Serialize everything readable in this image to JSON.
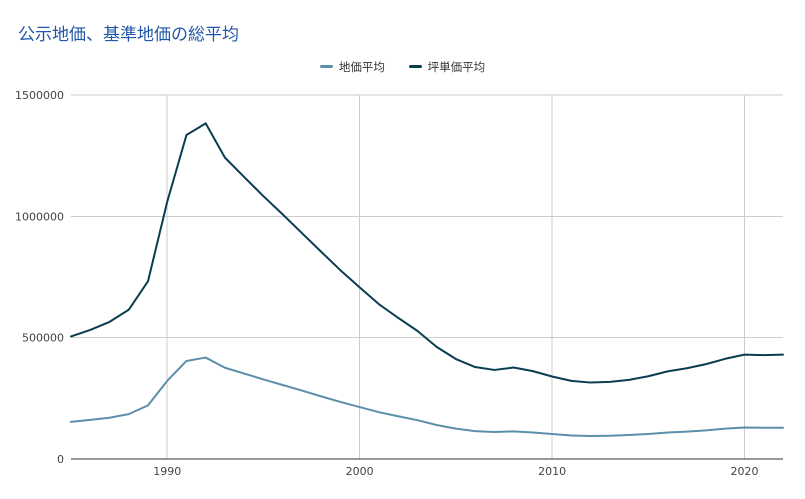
{
  "chart_data": {
    "type": "line",
    "title": "公示地価、基準地価の総平均",
    "xlabel": "",
    "ylabel": "",
    "xlim": [
      1985,
      2022
    ],
    "ylim": [
      0,
      1500000
    ],
    "x_ticks": [
      1990,
      2000,
      2010,
      2020
    ],
    "y_ticks": [
      0,
      500000,
      1000000,
      1500000
    ],
    "grid": true,
    "legend_position": "top",
    "x": [
      1985,
      1986,
      1987,
      1988,
      1989,
      1990,
      1991,
      1992,
      1993,
      1994,
      1995,
      1996,
      1997,
      1998,
      1999,
      2000,
      2001,
      2002,
      2003,
      2004,
      2005,
      2006,
      2007,
      2008,
      2009,
      2010,
      2011,
      2012,
      2013,
      2014,
      2015,
      2016,
      2017,
      2018,
      2019,
      2020,
      2021,
      2022
    ],
    "series": [
      {
        "name": "地価平均",
        "color": "#5b8fab",
        "values": [
          153000,
          161000,
          170000,
          185000,
          221000,
          322000,
          404000,
          418000,
          376000,
          352000,
          328000,
          305000,
          282000,
          258000,
          235000,
          214000,
          193000,
          176000,
          160000,
          140000,
          125000,
          115000,
          111000,
          114000,
          109000,
          103000,
          97000,
          95000,
          96000,
          99000,
          103000,
          109000,
          113000,
          118000,
          125000,
          130000,
          129000,
          129000
        ]
      },
      {
        "name": "坪単価平均",
        "color": "#0b3d52",
        "values": [
          505000,
          532000,
          565000,
          615000,
          732000,
          1060000,
          1335000,
          1383000,
          1242000,
          1162000,
          1083000,
          1008000,
          931000,
          854000,
          778000,
          707000,
          638000,
          582000,
          528000,
          462000,
          412000,
          379000,
          367000,
          377000,
          362000,
          340000,
          322000,
          315000,
          318000,
          326000,
          341000,
          361000,
          374000,
          391000,
          413000,
          430000,
          428000,
          430000
        ]
      }
    ]
  }
}
